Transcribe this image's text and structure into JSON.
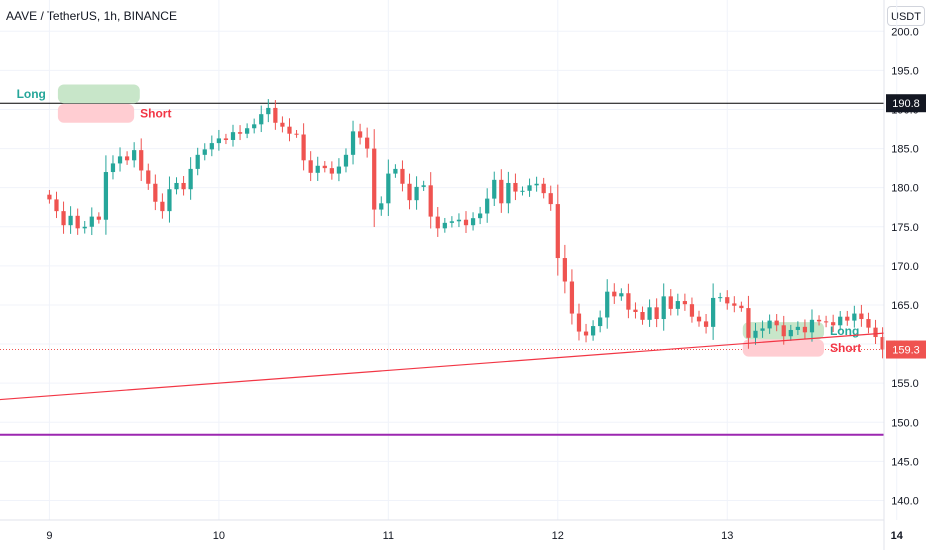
{
  "header": {
    "symbol": "AAVE / TetherUS, 1h, BINANCE"
  },
  "currency_label": "USDT",
  "colors": {
    "up": "#26a69a",
    "down": "#ef5350",
    "grid": "#f0f3fa",
    "resistance_line": "#000000",
    "support_line": "#9c27b0",
    "trendline": "#f23645",
    "long_zone": "#c8e6c9",
    "short_zone": "#ffcdd2",
    "long_text": "#26a69a",
    "short_text": "#f23645"
  },
  "chart_data": {
    "type": "candlestick",
    "y_ticks": [
      "200.0",
      "195.0",
      "190.0",
      "185.0",
      "180.0",
      "175.0",
      "170.0",
      "165.0",
      "160.0",
      "155.0",
      "150.0",
      "145.0",
      "140.0"
    ],
    "y_tick_values": [
      200,
      195,
      190,
      185,
      180,
      175,
      170,
      165,
      160,
      155,
      150,
      145,
      140
    ],
    "x_ticks": [
      {
        "label": "9",
        "hour": 0
      },
      {
        "label": "10",
        "hour": 24
      },
      {
        "label": "11",
        "hour": 48
      },
      {
        "label": "12",
        "hour": 72
      },
      {
        "label": "13",
        "hour": 96
      },
      {
        "label": "14",
        "hour": 120,
        "bold": true
      }
    ],
    "ylim": [
      137.5,
      204
    ],
    "xlim_hours": [
      -7,
      118.2
    ],
    "horizontal_lines": [
      {
        "name": "resistance",
        "value": 190.8,
        "label": "190.8"
      },
      {
        "name": "support",
        "value": 148.4
      }
    ],
    "trendline": {
      "start": {
        "hour": -7,
        "value": 152.9
      },
      "end": {
        "hour": 118.2,
        "value": 161.4
      }
    },
    "last_price": {
      "value": 159.3,
      "label": "159.3"
    },
    "annotations": [
      {
        "name": "long-top",
        "text": "Long",
        "color": "green",
        "hour_start": 1.2,
        "hour_end": 12.8,
        "value_top": 193.2,
        "value_bottom": 190.8,
        "text_side": "left"
      },
      {
        "name": "short-top",
        "text": "Short",
        "color": "red",
        "hour_start": 1.2,
        "hour_end": 12.0,
        "value_top": 190.7,
        "value_bottom": 188.3,
        "text_side": "right"
      },
      {
        "name": "long-bottom",
        "text": "Long",
        "color": "green",
        "hour_start": 98.2,
        "hour_end": 109.7,
        "value_top": 162.8,
        "value_bottom": 160.6,
        "text_side": "right"
      },
      {
        "name": "short-bottom",
        "text": "Short",
        "color": "red",
        "hour_start": 98.2,
        "hour_end": 109.7,
        "value_top": 160.6,
        "value_bottom": 158.4,
        "text_side": "right"
      }
    ],
    "closes": [
      178.5,
      177.0,
      175.2,
      176.4,
      174.8,
      175.0,
      176.3,
      175.9,
      182.0,
      183.1,
      184.0,
      183.5,
      184.8,
      182.2,
      180.5,
      178.2,
      177.0,
      179.8,
      180.6,
      179.8,
      182.4,
      184.2,
      184.9,
      185.7,
      186.3,
      186.1,
      187.1,
      186.9,
      187.6,
      188.1,
      189.4,
      190.2,
      188.3,
      187.8,
      186.9,
      186.8,
      183.5,
      181.9,
      182.8,
      182.5,
      181.8,
      182.7,
      184.2,
      187.2,
      186.4,
      185.0,
      177.2,
      178.0,
      181.8,
      182.4,
      180.5,
      178.4,
      180.1,
      180.3,
      176.3,
      174.8,
      175.5,
      175.7,
      175.9,
      175.2,
      176.1,
      176.7,
      178.6,
      181.0,
      178.0,
      180.6,
      179.5,
      179.6,
      180.3,
      180.5,
      179.3,
      177.9,
      171.0,
      168.0,
      163.9,
      161.6,
      161.1,
      162.3,
      163.4,
      166.7,
      166.1,
      166.5,
      164.4,
      164.1,
      163.1,
      164.7,
      163.2,
      166.1,
      164.5,
      165.5,
      165.1,
      163.5,
      162.9,
      162.2,
      165.9,
      166.0,
      165.2,
      164.9,
      164.6,
      160.8,
      161.7,
      162.0,
      163.0,
      162.4,
      161.0,
      161.8,
      162.2,
      161.5,
      163.1,
      162.9,
      162.8,
      162.4,
      163.5,
      163.0,
      163.9,
      163.2,
      162.1,
      160.9,
      159.3
    ]
  }
}
